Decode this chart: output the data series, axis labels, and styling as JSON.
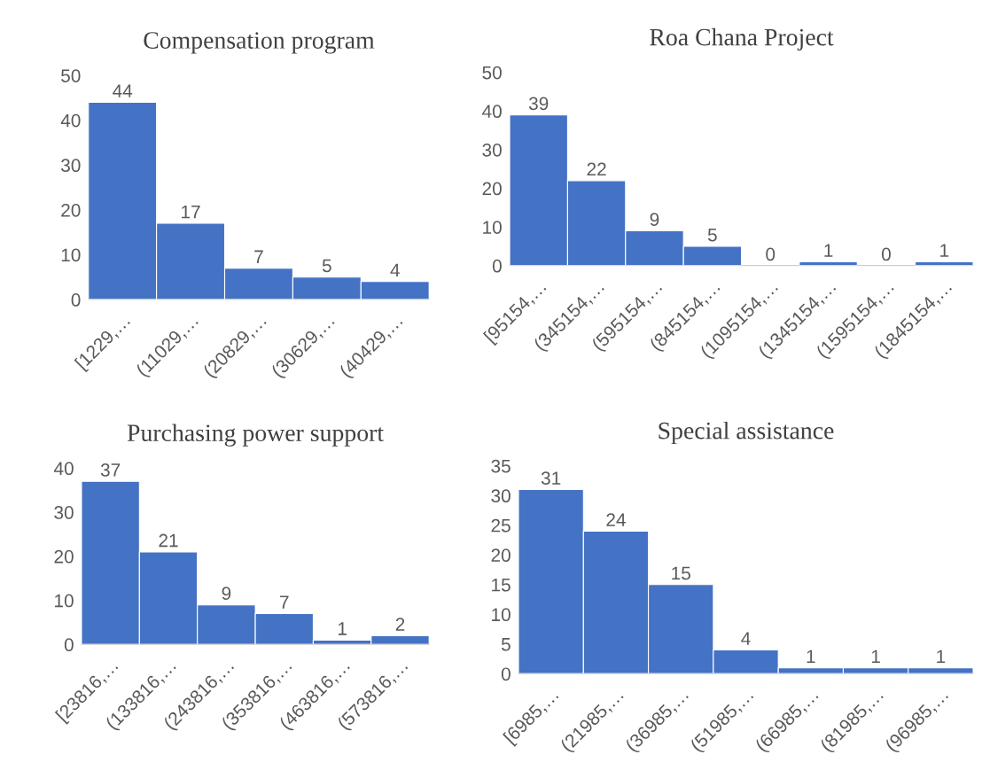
{
  "chart_data": [
    {
      "type": "bar",
      "title": "Compensation program",
      "categories": [
        "[1229,…",
        "(11029,…",
        "(20829,…",
        "(30629,…",
        "(40429,…"
      ],
      "values": [
        44,
        17,
        7,
        5,
        4
      ],
      "color": "#4472c4",
      "ylim": [
        0,
        50
      ],
      "yticks": [
        0,
        10,
        20,
        30,
        40,
        50
      ],
      "data_labels": true,
      "grid": false,
      "legend": false
    },
    {
      "type": "bar",
      "title": "Roa Chana Project",
      "categories": [
        "[95154,…",
        "(345154,…",
        "(595154,…",
        "(845154,…",
        "(1095154,…",
        "(1345154,…",
        "(1595154,…",
        "(1845154,…"
      ],
      "values": [
        39,
        22,
        9,
        5,
        0,
        1,
        0,
        1
      ],
      "color": "#4472c4",
      "ylim": [
        0,
        50
      ],
      "yticks": [
        0,
        10,
        20,
        30,
        40,
        50
      ],
      "data_labels": true,
      "grid": false,
      "legend": false
    },
    {
      "type": "bar",
      "title": "Purchasing power support",
      "categories": [
        "[23816,…",
        "(133816,…",
        "(243816,…",
        "(353816,…",
        "(463816,…",
        "(573816,…"
      ],
      "values": [
        37,
        21,
        9,
        7,
        1,
        2
      ],
      "color": "#4472c4",
      "ylim": [
        0,
        40
      ],
      "yticks": [
        0,
        10,
        20,
        30,
        40
      ],
      "data_labels": true,
      "grid": false,
      "legend": false
    },
    {
      "type": "bar",
      "title": "Special assistance",
      "categories": [
        "[6985,…",
        "(21985,…",
        "(36985,…",
        "(51985,…",
        "(66985,…",
        "(81985,…",
        "(96985,…"
      ],
      "values": [
        31,
        24,
        15,
        4,
        1,
        1,
        1
      ],
      "color": "#4472c4",
      "ylim": [
        0,
        35
      ],
      "yticks": [
        0,
        5,
        10,
        15,
        20,
        25,
        30,
        35
      ],
      "data_labels": true,
      "grid": false,
      "legend": false
    }
  ]
}
